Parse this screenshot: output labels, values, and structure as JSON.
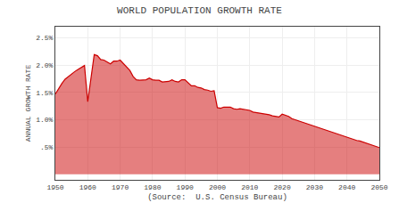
{
  "chart_data": {
    "type": "area",
    "title": "WORLD POPULATION GROWTH RATE",
    "xlabel": "(Source:  U.S. Census Bureau)",
    "ylabel": "ANNUAL GROWTH RATE",
    "x": [
      1950,
      1951,
      1952,
      1953,
      1954,
      1955,
      1956,
      1957,
      1958,
      1959,
      1960,
      1961,
      1962,
      1963,
      1964,
      1965,
      1966,
      1967,
      1968,
      1969,
      1970,
      1971,
      1972,
      1973,
      1974,
      1975,
      1976,
      1977,
      1978,
      1979,
      1980,
      1981,
      1982,
      1983,
      1984,
      1985,
      1986,
      1987,
      1988,
      1989,
      1990,
      1991,
      1992,
      1993,
      1994,
      1995,
      1996,
      1997,
      1998,
      1999,
      2000,
      2001,
      2002,
      2003,
      2004,
      2005,
      2006,
      2007,
      2008,
      2009,
      2010,
      2011,
      2012,
      2013,
      2014,
      2015,
      2016,
      2017,
      2018,
      2019,
      2020,
      2021,
      2022,
      2023,
      2024,
      2025,
      2026,
      2027,
      2028,
      2029,
      2030,
      2031,
      2032,
      2033,
      2034,
      2035,
      2036,
      2037,
      2038,
      2039,
      2040,
      2041,
      2042,
      2043,
      2044,
      2045,
      2046,
      2047,
      2048,
      2049,
      2050
    ],
    "values": [
      1.47,
      1.57,
      1.66,
      1.74,
      1.79,
      1.84,
      1.88,
      1.92,
      1.96,
      1.99,
      1.33,
      1.78,
      2.19,
      2.17,
      2.1,
      2.09,
      2.05,
      2.02,
      2.07,
      2.07,
      2.09,
      2.03,
      1.96,
      1.9,
      1.79,
      1.73,
      1.72,
      1.73,
      1.73,
      1.76,
      1.73,
      1.72,
      1.72,
      1.69,
      1.69,
      1.7,
      1.73,
      1.7,
      1.69,
      1.73,
      1.73,
      1.67,
      1.62,
      1.62,
      1.59,
      1.58,
      1.55,
      1.54,
      1.52,
      1.53,
      1.22,
      1.21,
      1.23,
      1.23,
      1.23,
      1.2,
      1.19,
      1.2,
      1.19,
      1.17,
      1.17,
      1.14,
      1.13,
      1.13,
      1.11,
      1.1,
      1.09,
      1.07,
      1.06,
      1.05,
      1.1,
      1.08,
      1.06,
      1.02,
      1.0,
      0.97,
      0.95,
      0.93,
      0.91,
      0.89,
      0.87,
      0.85,
      0.83,
      0.81,
      0.79,
      0.77,
      0.76,
      0.74,
      0.72,
      0.7,
      0.68,
      0.66,
      0.64,
      0.62,
      0.61,
      0.59,
      0.57,
      0.55,
      0.53,
      0.51,
      0.49
    ],
    "color": "#cc0000",
    "xlim": [
      1950,
      2050
    ],
    "ylim": [
      -0.1,
      2.7
    ],
    "xticks": [
      1950,
      1960,
      1970,
      1980,
      1990,
      2000,
      2010,
      2020,
      2030,
      2040,
      2050
    ],
    "yticks": [
      {
        "value": 0.5,
        "label": ".5%"
      },
      {
        "value": 1.0,
        "label": "1.0%"
      },
      {
        "value": 1.5,
        "label": "1.5%"
      },
      {
        "value": 2.0,
        "label": "2.0%"
      },
      {
        "value": 2.5,
        "label": "2.5%"
      }
    ],
    "grid": true
  }
}
